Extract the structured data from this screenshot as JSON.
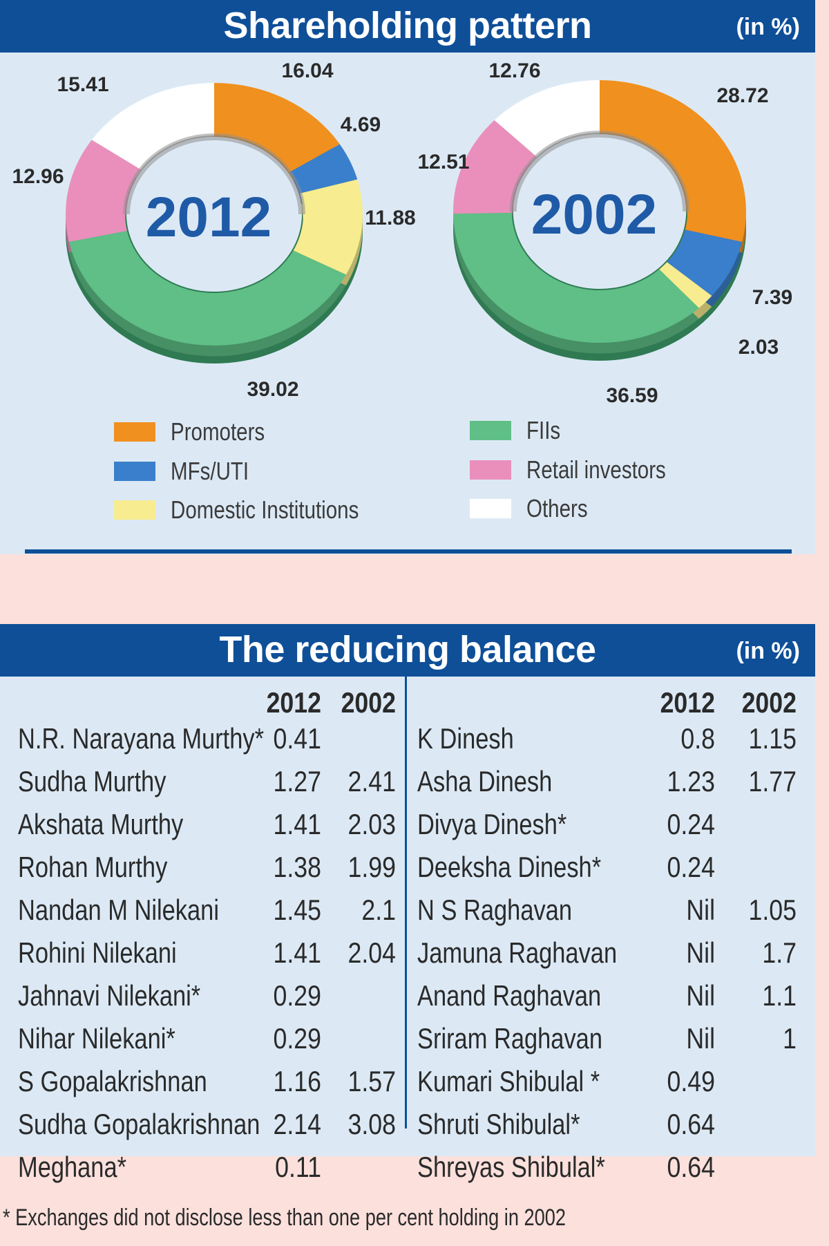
{
  "section1": {
    "title": "Shareholding pattern",
    "unit": "(in %)"
  },
  "colors": {
    "Promoters": "#f0901e",
    "MFs/UTI": "#3a7fcb",
    "Domestic Institutions": "#f7ec8f",
    "FIIs": "#5fbf86",
    "Retail investors": "#ea8fbc",
    "Others": "#ffffff"
  },
  "chart_data": [
    {
      "type": "pie",
      "center_label": "2012",
      "categories": [
        "Promoters",
        "MFs/UTI",
        "Domestic Institutions",
        "FIIs",
        "Retail investors",
        "Others"
      ],
      "values": [
        16.04,
        4.69,
        11.88,
        39.02,
        12.96,
        15.41
      ]
    },
    {
      "type": "pie",
      "center_label": "2002",
      "categories": [
        "Promoters",
        "MFs/UTI",
        "Domestic Institutions",
        "FIIs",
        "Retail investors",
        "Others"
      ],
      "values": [
        28.72,
        7.39,
        2.03,
        36.59,
        12.51,
        12.76
      ]
    }
  ],
  "legend": [
    "Promoters",
    "MFs/UTI",
    "Domestic Institutions",
    "FIIs",
    "Retail investors",
    "Others"
  ],
  "section2": {
    "title": "The reducing balance",
    "unit": "(in %)",
    "col_2012": "2012",
    "col_2002": "2002",
    "left_rows": [
      {
        "name": "N.R. Narayana Murthy*",
        "v2012": "0.41",
        "v2002": ""
      },
      {
        "name": "Sudha Murthy",
        "v2012": "1.27",
        "v2002": "2.41"
      },
      {
        "name": "Akshata Murthy",
        "v2012": "1.41",
        "v2002": "2.03"
      },
      {
        "name": "Rohan Murthy",
        "v2012": "1.38",
        "v2002": "1.99"
      },
      {
        "name": "Nandan M Nilekani",
        "v2012": "1.45",
        "v2002": "2.1"
      },
      {
        "name": "Rohini Nilekani",
        "v2012": "1.41",
        "v2002": "2.04"
      },
      {
        "name": "Jahnavi Nilekani*",
        "v2012": "0.29",
        "v2002": ""
      },
      {
        "name": "Nihar Nilekani*",
        "v2012": "0.29",
        "v2002": ""
      },
      {
        "name": "S Gopalakrishnan",
        "v2012": "1.16",
        "v2002": "1.57"
      },
      {
        "name": "Sudha Gopalakrishnan",
        "v2012": "2.14",
        "v2002": "3.08"
      },
      {
        "name": "Meghana*",
        "v2012": "0.11",
        "v2002": ""
      }
    ],
    "right_rows": [
      {
        "name": "K Dinesh",
        "v2012": "0.8",
        "v2002": "1.15"
      },
      {
        "name": "Asha Dinesh",
        "v2012": "1.23",
        "v2002": "1.77"
      },
      {
        "name": "Divya Dinesh*",
        "v2012": "0.24",
        "v2002": ""
      },
      {
        "name": "Deeksha Dinesh*",
        "v2012": "0.24",
        "v2002": ""
      },
      {
        "name": "N S Raghavan",
        "v2012": "Nil",
        "v2002": "1.05"
      },
      {
        "name": "Jamuna Raghavan",
        "v2012": "Nil",
        "v2002": "1.7"
      },
      {
        "name": "Anand Raghavan",
        "v2012": "Nil",
        "v2002": "1.1"
      },
      {
        "name": "Sriram Raghavan",
        "v2012": "Nil",
        "v2002": "1"
      },
      {
        "name": "Kumari Shibulal *",
        "v2012": "0.49",
        "v2002": ""
      },
      {
        "name": "Shruti Shibulal*",
        "v2012": "0.64",
        "v2002": ""
      },
      {
        "name": "Shreyas Shibulal*",
        "v2012": "0.64",
        "v2002": ""
      }
    ]
  },
  "footnote": "* Exchanges did not disclose less than one per cent holding in 2002"
}
